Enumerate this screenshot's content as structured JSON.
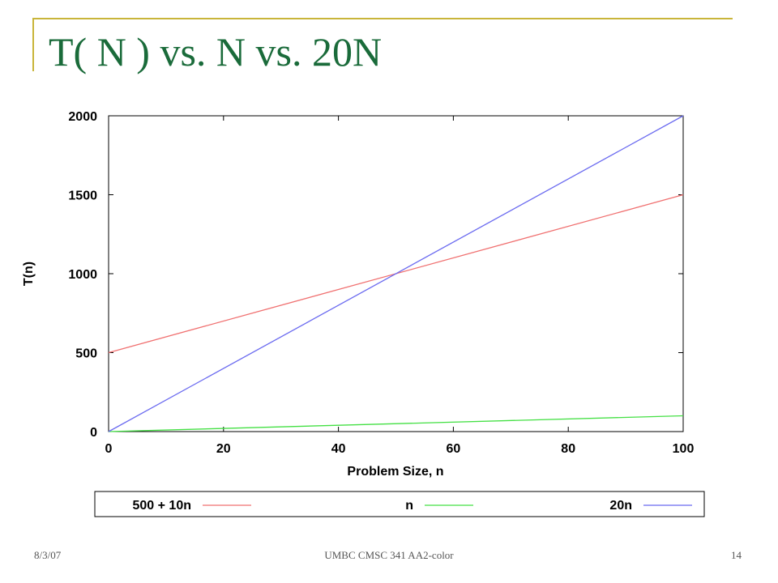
{
  "slide": {
    "title": "T( N ) vs. N vs. 20N",
    "footer_date": "8/3/07",
    "footer_center": "UMBC CMSC 341 AA2-color",
    "page_number": "14",
    "colors": {
      "title": "#1a6b3a",
      "rule": "#c9b53a"
    }
  },
  "chart_data": {
    "type": "line",
    "title": "",
    "xlabel": "Problem Size, n",
    "ylabel": "T(n)",
    "xlim": [
      0,
      100
    ],
    "ylim": [
      0,
      2000
    ],
    "x_ticks": [
      0,
      20,
      40,
      60,
      80,
      100
    ],
    "y_ticks": [
      0,
      500,
      1000,
      1500,
      2000
    ],
    "grid": false,
    "legend_position": "bottom",
    "x": [
      0,
      100
    ],
    "series": [
      {
        "name": "500 + 10n",
        "values": [
          500,
          1500
        ],
        "color": "#f07070"
      },
      {
        "name": "n",
        "values": [
          0,
          100
        ],
        "color": "#44e044"
      },
      {
        "name": "20n",
        "values": [
          0,
          2000
        ],
        "color": "#6b6bf0"
      }
    ]
  }
}
